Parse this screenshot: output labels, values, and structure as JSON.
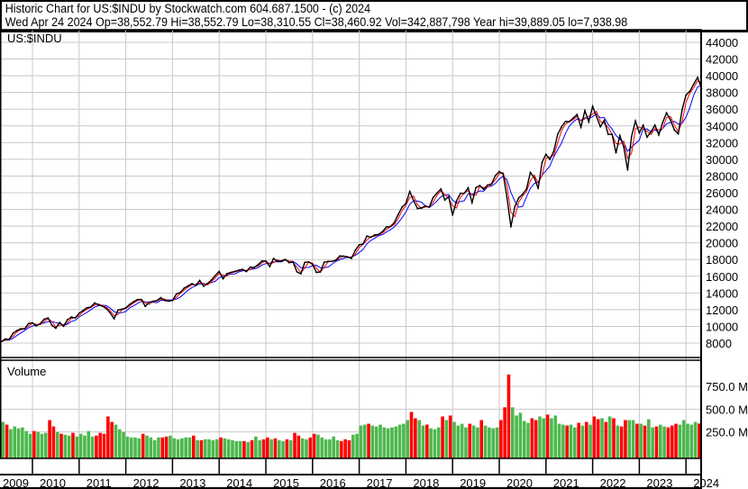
{
  "header": {
    "line1": "Historic Chart for US:$INDU by Stockwatch.com 604.687.1500 - (c) 2024",
    "line2": "Wed Apr 24 2024   Op=38,552.79   Hi=38,552.79   Lo=38,310.55   Cl=38,460.92   Vol=342,887,798   Year hi=39,889.05   lo=7,938.98"
  },
  "colors": {
    "price": "#000000",
    "ma_short": "#ff0000",
    "ma_long": "#0000ff",
    "vol_up": "#4cb84c",
    "vol_down": "#ff0000",
    "grid": "#c8c8c8"
  },
  "chart_data": [
    {
      "type": "line",
      "title": "US:$INDU",
      "y_ticks": [
        44000,
        42000,
        40000,
        38000,
        36000,
        34000,
        32000,
        30000,
        28000,
        26000,
        24000,
        22000,
        20000,
        18000,
        16000,
        14000,
        12000,
        10000,
        8000
      ],
      "ylim": [
        6400,
        45500
      ],
      "x_ticks": [
        "2009",
        "2010",
        "2011",
        "2012",
        "2013",
        "2014",
        "2015",
        "2016",
        "2017",
        "2018",
        "2019",
        "2020",
        "2021",
        "2022",
        "2023",
        "2024"
      ],
      "grid": true,
      "series_monthly_close": {
        "2009": [
          null,
          null,
          null,
          8168,
          8500,
          8447,
          9172,
          9496,
          9712,
          9713,
          10345,
          10428
        ],
        "2010": [
          10067,
          10325,
          10857,
          11009,
          10137,
          9774,
          10466,
          10015,
          10788,
          11118,
          11006,
          11578
        ],
        "2011": [
          11892,
          12226,
          12320,
          12811,
          12570,
          12414,
          12143,
          11614,
          10913,
          11955,
          12046,
          12218
        ],
        "2012": [
          12633,
          12952,
          13212,
          13214,
          12393,
          12880,
          13009,
          13091,
          13437,
          13096,
          13026,
          13104
        ],
        "2013": [
          13861,
          14054,
          14579,
          14840,
          15116,
          14910,
          15500,
          14810,
          15130,
          15546,
          16086,
          16577
        ],
        "2014": [
          15699,
          16322,
          16458,
          16581,
          16717,
          16827,
          16563,
          17098,
          17043,
          17391,
          17828,
          17823
        ],
        "2015": [
          17165,
          18133,
          17776,
          17841,
          18011,
          17620,
          17690,
          16528,
          16285,
          17664,
          17720,
          17425
        ],
        "2016": [
          16466,
          16517,
          17685,
          17774,
          17787,
          17930,
          18432,
          18401,
          18308,
          18142,
          19124,
          19763
        ],
        "2017": [
          19864,
          20812,
          20663,
          20941,
          21009,
          21350,
          21891,
          21948,
          22405,
          23377,
          24272,
          24719
        ],
        "2018": [
          26149,
          25029,
          24103,
          24163,
          24416,
          24271,
          25415,
          25965,
          26458,
          25116,
          25538,
          23327
        ],
        "2019": [
          24999,
          25916,
          25929,
          26593,
          24815,
          26600,
          26864,
          26403,
          26917,
          27046,
          28051,
          28538
        ],
        "2020": [
          28256,
          25409,
          21917,
          24346,
          25383,
          25813,
          26428,
          28430,
          27782,
          26502,
          29638,
          30606
        ],
        "2021": [
          29983,
          30932,
          32982,
          33875,
          34529,
          34503,
          34935,
          35361,
          33844,
          35820,
          34484,
          36338
        ],
        "2022": [
          35132,
          33893,
          34678,
          32977,
          32990,
          30775,
          32845,
          31510,
          28726,
          32733,
          34590,
          33147
        ],
        "2023": [
          34086,
          32657,
          33274,
          34098,
          32908,
          34408,
          35560,
          34722,
          33508,
          33053,
          35951,
          37690
        ],
        "2024": [
          38150,
          38996,
          39807,
          38461
        ]
      }
    },
    {
      "type": "bar",
      "title": "Volume",
      "y_ticks": [
        "750.0 M",
        "500.0 M",
        "250.0 M"
      ],
      "ylim": [
        0,
        1000
      ],
      "unit": "M",
      "series_monthly_volume": {
        "2009": [
          null,
          null,
          null,
          420,
          360,
          330,
          280,
          310,
          290,
          300,
          260,
          230
        ],
        "2010": [
          260,
          250,
          230,
          240,
          380,
          310,
          250,
          230,
          220,
          210,
          240,
          200
        ],
        "2011": [
          230,
          210,
          260,
          200,
          210,
          240,
          230,
          420,
          360,
          330,
          280,
          250
        ],
        "2012": [
          200,
          190,
          190,
          180,
          230,
          210,
          190,
          160,
          190,
          190,
          200,
          210
        ],
        "2013": [
          180,
          170,
          180,
          190,
          190,
          210,
          160,
          160,
          170,
          170,
          160,
          170
        ],
        "2014": [
          190,
          180,
          170,
          160,
          150,
          150,
          150,
          140,
          160,
          200,
          160,
          170
        ],
        "2015": [
          190,
          170,
          180,
          160,
          150,
          170,
          160,
          240,
          210,
          180,
          170,
          190
        ],
        "2016": [
          230,
          220,
          190,
          170,
          170,
          200,
          160,
          150,
          170,
          160,
          220,
          230
        ],
        "2017": [
          320,
          330,
          340,
          320,
          310,
          330,
          300,
          290,
          300,
          310,
          330,
          340
        ],
        "2018": [
          380,
          470,
          400,
          380,
          320,
          330,
          290,
          280,
          300,
          420,
          380,
          430
        ],
        "2019": [
          360,
          320,
          340,
          300,
          340,
          320,
          300,
          380,
          320,
          300,
          290,
          300
        ],
        "2020": [
          380,
          520,
          880,
          520,
          430,
          460,
          370,
          350,
          400,
          380,
          420,
          400
        ],
        "2021": [
          440,
          400,
          430,
          340,
          330,
          320,
          330,
          300,
          350,
          320,
          360,
          330
        ],
        "2022": [
          420,
          390,
          400,
          360,
          420,
          400,
          320,
          310,
          380,
          380,
          380,
          340
        ],
        "2023": [
          340,
          320,
          390,
          300,
          310,
          330,
          310,
          300,
          320,
          340,
          330,
          380
        ],
        "2024": [
          340,
          330,
          360,
          342
        ]
      }
    }
  ]
}
